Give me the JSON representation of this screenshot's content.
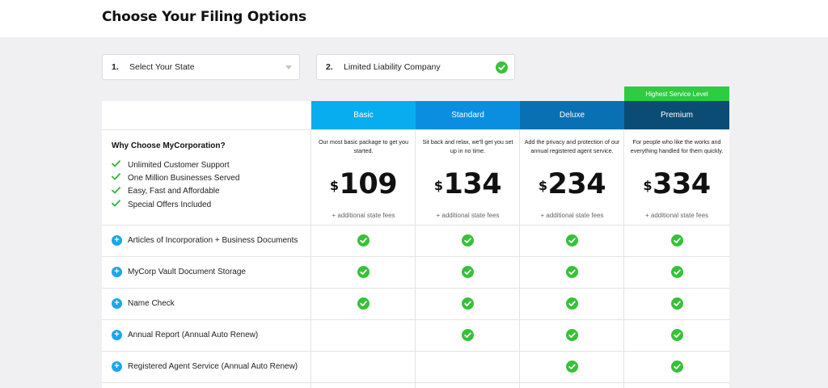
{
  "page": {
    "title": "Choose Your Filing Options"
  },
  "steps": [
    {
      "number": "1.",
      "label": "Select Your State",
      "type": "dropdown"
    },
    {
      "number": "2.",
      "label": "Limited Liability Company",
      "completed": true
    }
  ],
  "badge": {
    "label": "Highest Service Level"
  },
  "plans": [
    {
      "name": "Basic",
      "description": "Our most basic package to get you started.",
      "currency": "$",
      "price": "109",
      "fees": "+ additional state fees",
      "color": "#07adee"
    },
    {
      "name": "Standard",
      "description": "Sit back and relax, we'll get you set up in no time.",
      "currency": "$",
      "price": "134",
      "fees": "+ additional state fees",
      "color": "#0b8ee0"
    },
    {
      "name": "Deluxe",
      "description": "Add the privacy and protection of our annual registered agent service.",
      "currency": "$",
      "price": "234",
      "fees": "+ additional state fees",
      "color": "#0a70b4"
    },
    {
      "name": "Premium",
      "description": "For people who like the works and everything handled for them quickly.",
      "currency": "$",
      "price": "334",
      "fees": "+ additional state fees",
      "color": "#0b4c74"
    }
  ],
  "why": {
    "title": "Why Choose MyCorporation?",
    "items": [
      "Unlimited Customer Support",
      "One Million Businesses Served",
      "Easy, Fast and Affordable",
      "Special Offers Included"
    ]
  },
  "features": [
    {
      "label": "Articles of Incorporation + Business Documents",
      "included": [
        true,
        true,
        true,
        true
      ]
    },
    {
      "label": "MyCorp Vault Document Storage",
      "included": [
        true,
        true,
        true,
        true
      ]
    },
    {
      "label": "Name Check",
      "included": [
        true,
        true,
        true,
        true
      ]
    },
    {
      "label": "Annual Report (Annual Auto Renew)",
      "included": [
        false,
        true,
        true,
        true
      ]
    },
    {
      "label": "Registered Agent Service (Annual Auto Renew)",
      "included": [
        false,
        false,
        true,
        true
      ]
    }
  ],
  "colors": {
    "check": "#35c238",
    "plus": "#1aa7ec",
    "badge": "#2ecc40"
  }
}
